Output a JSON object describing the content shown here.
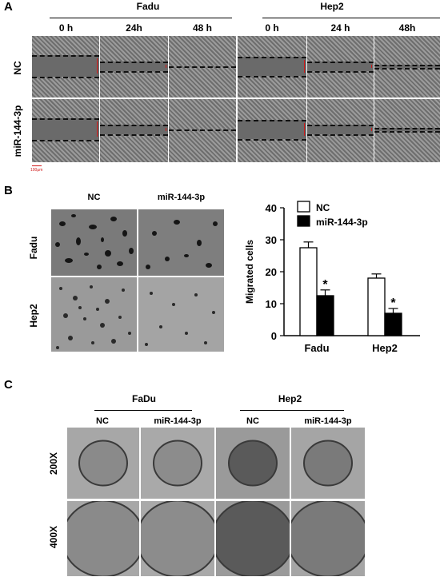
{
  "panel_a": {
    "letter": "A",
    "groups": [
      "Fadu",
      "Hep2"
    ],
    "timepoints": [
      "0 h",
      "24h",
      "48 h",
      "0 h",
      "24 h",
      "48h"
    ],
    "rows": [
      "NC",
      "miR-144-3p"
    ],
    "scale_bar": "100μm"
  },
  "panel_b": {
    "letter": "B",
    "columns": [
      "NC",
      "miR-144-3p"
    ],
    "rows": [
      "Fadu",
      "Hep2"
    ]
  },
  "panel_c": {
    "letter": "C",
    "groups": [
      "FaDu",
      "Hep2"
    ],
    "columns": [
      "NC",
      "miR-144-3p",
      "NC",
      "miR-144-3p"
    ],
    "rows": [
      "200X",
      "400X"
    ]
  },
  "chart_data": {
    "type": "bar",
    "categories": [
      "Fadu",
      "Hep2"
    ],
    "series": [
      {
        "name": "NC",
        "values": [
          27.5,
          18.0
        ],
        "errors": [
          1.8,
          1.3
        ],
        "color": "#ffffff"
      },
      {
        "name": "miR-144-3p",
        "values": [
          12.5,
          7.0
        ],
        "errors": [
          1.8,
          1.5
        ],
        "color": "#000000"
      }
    ],
    "significance": [
      "*",
      "*"
    ],
    "ylabel": "Migrated cells",
    "ylim": [
      0,
      40
    ],
    "yticks": [
      0,
      10,
      20,
      30,
      40
    ],
    "legend": "top-left"
  }
}
